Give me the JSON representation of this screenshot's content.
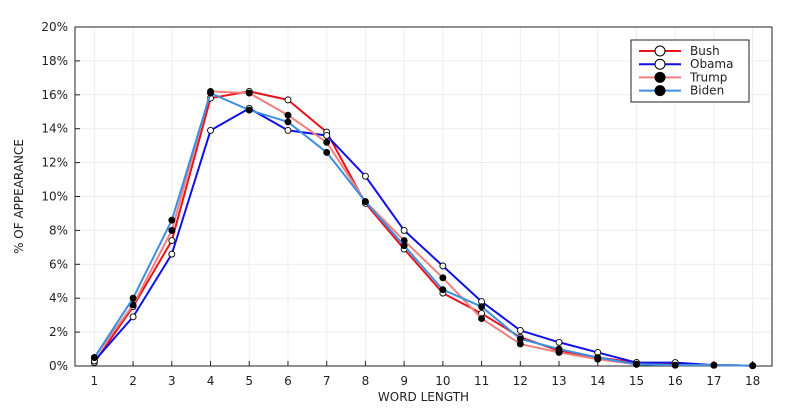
{
  "chart_data": {
    "type": "line",
    "xlabel": "WORD LENGTH",
    "ylabel": "% OF APPEARANCE",
    "x": [
      1,
      2,
      3,
      4,
      5,
      6,
      7,
      8,
      9,
      10,
      11,
      12,
      13,
      14,
      15,
      16,
      17,
      18
    ],
    "xlim": [
      0.5,
      18.5
    ],
    "ylim": [
      0,
      20
    ],
    "yticks": [
      0,
      2,
      4,
      6,
      8,
      10,
      12,
      14,
      16,
      18,
      20
    ],
    "ytick_labels": [
      "0%",
      "2%",
      "4%",
      "6%",
      "8%",
      "10%",
      "12%",
      "14%",
      "16%",
      "18%",
      "20%"
    ],
    "xtick_labels": [
      "1",
      "2",
      "3",
      "4",
      "5",
      "6",
      "7",
      "8",
      "9",
      "10",
      "11",
      "12",
      "13",
      "14",
      "15",
      "16",
      "17",
      "18"
    ],
    "grid": true,
    "legend_position": "top-right",
    "series": [
      {
        "name": "Bush",
        "color": "#e8141b",
        "marker": "open",
        "values": [
          0.2,
          3.5,
          7.4,
          15.8,
          16.2,
          15.7,
          13.8,
          9.6,
          6.9,
          4.3,
          3.1,
          1.7,
          0.9,
          0.5,
          0.2,
          0.1,
          0.05,
          0.02
        ]
      },
      {
        "name": "Obama",
        "color": "#1010e8",
        "marker": "open",
        "values": [
          0.3,
          2.9,
          6.6,
          13.9,
          15.2,
          13.9,
          13.6,
          11.2,
          8.0,
          5.9,
          3.8,
          2.1,
          1.4,
          0.8,
          0.2,
          0.2,
          0.05,
          0.02
        ]
      },
      {
        "name": "Trump",
        "color": "#f08080",
        "marker": "filled",
        "values": [
          0.5,
          3.6,
          8.0,
          16.2,
          16.1,
          14.8,
          13.2,
          9.7,
          7.4,
          5.2,
          2.8,
          1.3,
          0.8,
          0.4,
          0.1,
          0.05,
          0.05,
          0.02
        ]
      },
      {
        "name": "Biden",
        "color": "#3d8fe0",
        "marker": "filled",
        "values": [
          0.5,
          4.0,
          8.6,
          16.1,
          15.1,
          14.4,
          12.6,
          9.7,
          7.1,
          4.5,
          3.5,
          1.6,
          1.0,
          0.5,
          0.1,
          0.05,
          0.05,
          0.02
        ]
      }
    ]
  }
}
